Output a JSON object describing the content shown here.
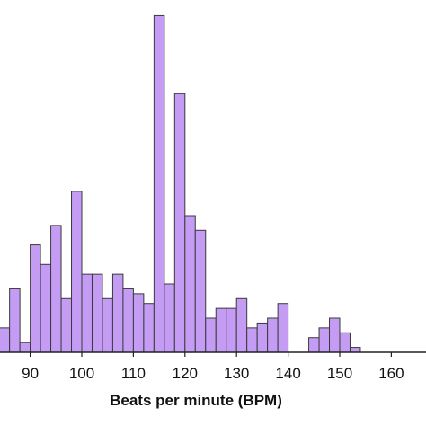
{
  "chart_data": {
    "type": "bar",
    "title": "",
    "xlabel": "Beats per minute (BPM)",
    "ylabel": "",
    "bin_width": 2,
    "xlim": [
      84.5,
      168
    ],
    "ylim": [
      0,
      70
    ],
    "grid": false,
    "legend": "none",
    "bar_color": "#c49cf4",
    "edge_color": "#3a3a3a",
    "x_ticks": [
      90,
      100,
      110,
      120,
      130,
      140,
      150,
      160
    ],
    "x_tick_labels": [
      "90",
      "100",
      "110",
      "120",
      "130",
      "140",
      "150",
      "160"
    ],
    "bin_starts": [
      84,
      86,
      88,
      90,
      92,
      94,
      96,
      98,
      100,
      102,
      104,
      106,
      108,
      110,
      112,
      114,
      116,
      118,
      120,
      122,
      124,
      126,
      128,
      130,
      132,
      134,
      136,
      138,
      140,
      142,
      144,
      146,
      148,
      150,
      152,
      154,
      156,
      158,
      160,
      162,
      164,
      166
    ],
    "values": [
      5,
      13,
      2,
      22,
      18,
      26,
      11,
      33,
      16,
      16,
      11,
      16,
      13,
      12,
      10,
      69,
      14,
      53,
      28,
      25,
      7,
      9,
      9,
      11,
      5,
      6,
      7,
      10,
      0,
      0,
      3,
      5,
      7,
      4,
      1,
      0,
      0,
      0,
      0,
      0,
      0,
      0
    ]
  }
}
